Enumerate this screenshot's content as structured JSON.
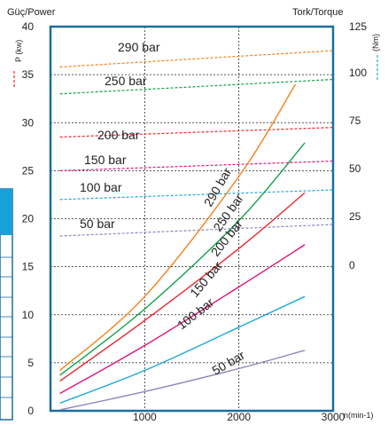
{
  "chart_data": {
    "type": "line",
    "left_axis_label": "Güç/Power",
    "left_axis_unit": "P (kw)",
    "right_axis_label": "Tork/Torque",
    "right_axis_unit": "(Nm)",
    "x_unit_label": "n(min-1)",
    "xlim": [
      0,
      3000
    ],
    "ylim_left": [
      0,
      40
    ],
    "ylim_right": [
      0,
      125
    ],
    "x_ticks": [
      "1000",
      "2000",
      "3000"
    ],
    "y_left_ticks": [
      "0",
      "5",
      "10",
      "15",
      "20",
      "25",
      "30",
      "35",
      "40"
    ],
    "y_right_ticks": [
      "0",
      "25",
      "50",
      "75",
      "100",
      "125"
    ],
    "grid": true,
    "power_series": [
      {
        "name": "50 bar",
        "color": "#8c86bd",
        "x": [
          100,
          1000,
          2000,
          2700
        ],
        "y": [
          0.1,
          2.0,
          4.4,
          6.3
        ]
      },
      {
        "name": "100 bar",
        "color": "#20a8d8",
        "x": [
          100,
          1000,
          2000,
          2700
        ],
        "y": [
          0.8,
          4.2,
          8.7,
          11.9
        ]
      },
      {
        "name": "150 bar",
        "color": "#e0147a",
        "x": [
          100,
          1000,
          2000,
          2700
        ],
        "y": [
          1.8,
          6.8,
          12.9,
          17.3
        ]
      },
      {
        "name": "200 bar",
        "color": "#e8282d",
        "x": [
          100,
          1000,
          2000,
          2700
        ],
        "y": [
          3.1,
          9.4,
          16.9,
          22.7
        ]
      },
      {
        "name": "250 bar",
        "color": "#12a04a",
        "x": [
          100,
          1000,
          2000,
          2700
        ],
        "y": [
          3.7,
          10.6,
          19.8,
          27.9
        ]
      },
      {
        "name": "290 bar",
        "color": "#f0821c",
        "x": [
          100,
          1000,
          2000,
          2600
        ],
        "y": [
          4.2,
          11.9,
          24.4,
          34.0
        ]
      }
    ],
    "power_labels": [
      "50 bar",
      "100 bar",
      "150 bar",
      "200 bar",
      "250 bar",
      "290 bar"
    ],
    "torque_series": [
      {
        "name": "50 bar",
        "color": "#8c86bd",
        "x": [
          100,
          3000
        ],
        "y_left": [
          18.2,
          19.4
        ]
      },
      {
        "name": "100 bar",
        "color": "#20a8d8",
        "x": [
          100,
          3000
        ],
        "y_left": [
          22.0,
          23.0
        ]
      },
      {
        "name": "150 bar",
        "color": "#e0147a",
        "x": [
          100,
          3000
        ],
        "y_left": [
          25.0,
          26.0
        ]
      },
      {
        "name": "200 bar",
        "color": "#e8282d",
        "x": [
          100,
          3000
        ],
        "y_left": [
          28.5,
          29.5
        ]
      },
      {
        "name": "250 bar",
        "color": "#12a04a",
        "x": [
          100,
          3000
        ],
        "y_left": [
          33.0,
          34.5
        ]
      },
      {
        "name": "290 bar",
        "color": "#f0821c",
        "x": [
          100,
          3000
        ],
        "y_left": [
          35.8,
          37.5
        ]
      }
    ],
    "torque_labels": [
      "50 bar",
      "100 bar",
      "150 bar",
      "200 bar",
      "250 bar",
      "290 bar"
    ]
  }
}
